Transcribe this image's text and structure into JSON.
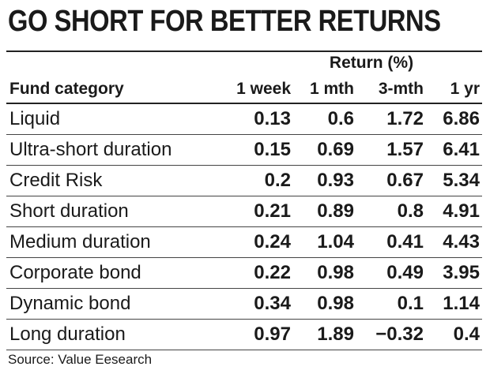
{
  "title": "GO SHORT FOR BETTER RETURNS",
  "group_header": "Return (%)",
  "columns": [
    "Fund category",
    "1 week",
    "1 mth",
    "3-mth",
    "1 yr"
  ],
  "source": "Source: Value Eesearch",
  "chart_data": {
    "type": "table",
    "title": "GO SHORT FOR BETTER RETURNS",
    "group_header": "Return (%)",
    "columns": [
      "Fund category",
      "1 week",
      "1 mth",
      "3-mth",
      "1 yr"
    ],
    "rows": [
      [
        "Liquid",
        "0.13",
        "0.6",
        "1.72",
        "6.86"
      ],
      [
        "Ultra-short duration",
        "0.15",
        "0.69",
        "1.57",
        "6.41"
      ],
      [
        "Credit Risk",
        "0.2",
        "0.93",
        "0.67",
        "5.34"
      ],
      [
        "Short duration",
        "0.21",
        "0.89",
        "0.8",
        "4.91"
      ],
      [
        "Medium duration",
        "0.24",
        "1.04",
        "0.41",
        "4.43"
      ],
      [
        "Corporate bond",
        "0.22",
        "0.98",
        "0.49",
        "3.95"
      ],
      [
        "Dynamic bond",
        "0.34",
        "0.98",
        "0.1",
        "1.14"
      ],
      [
        "Long duration",
        "0.97",
        "1.89",
        "−0.32",
        "0.4"
      ]
    ],
    "source": "Source: Value Eesearch"
  }
}
